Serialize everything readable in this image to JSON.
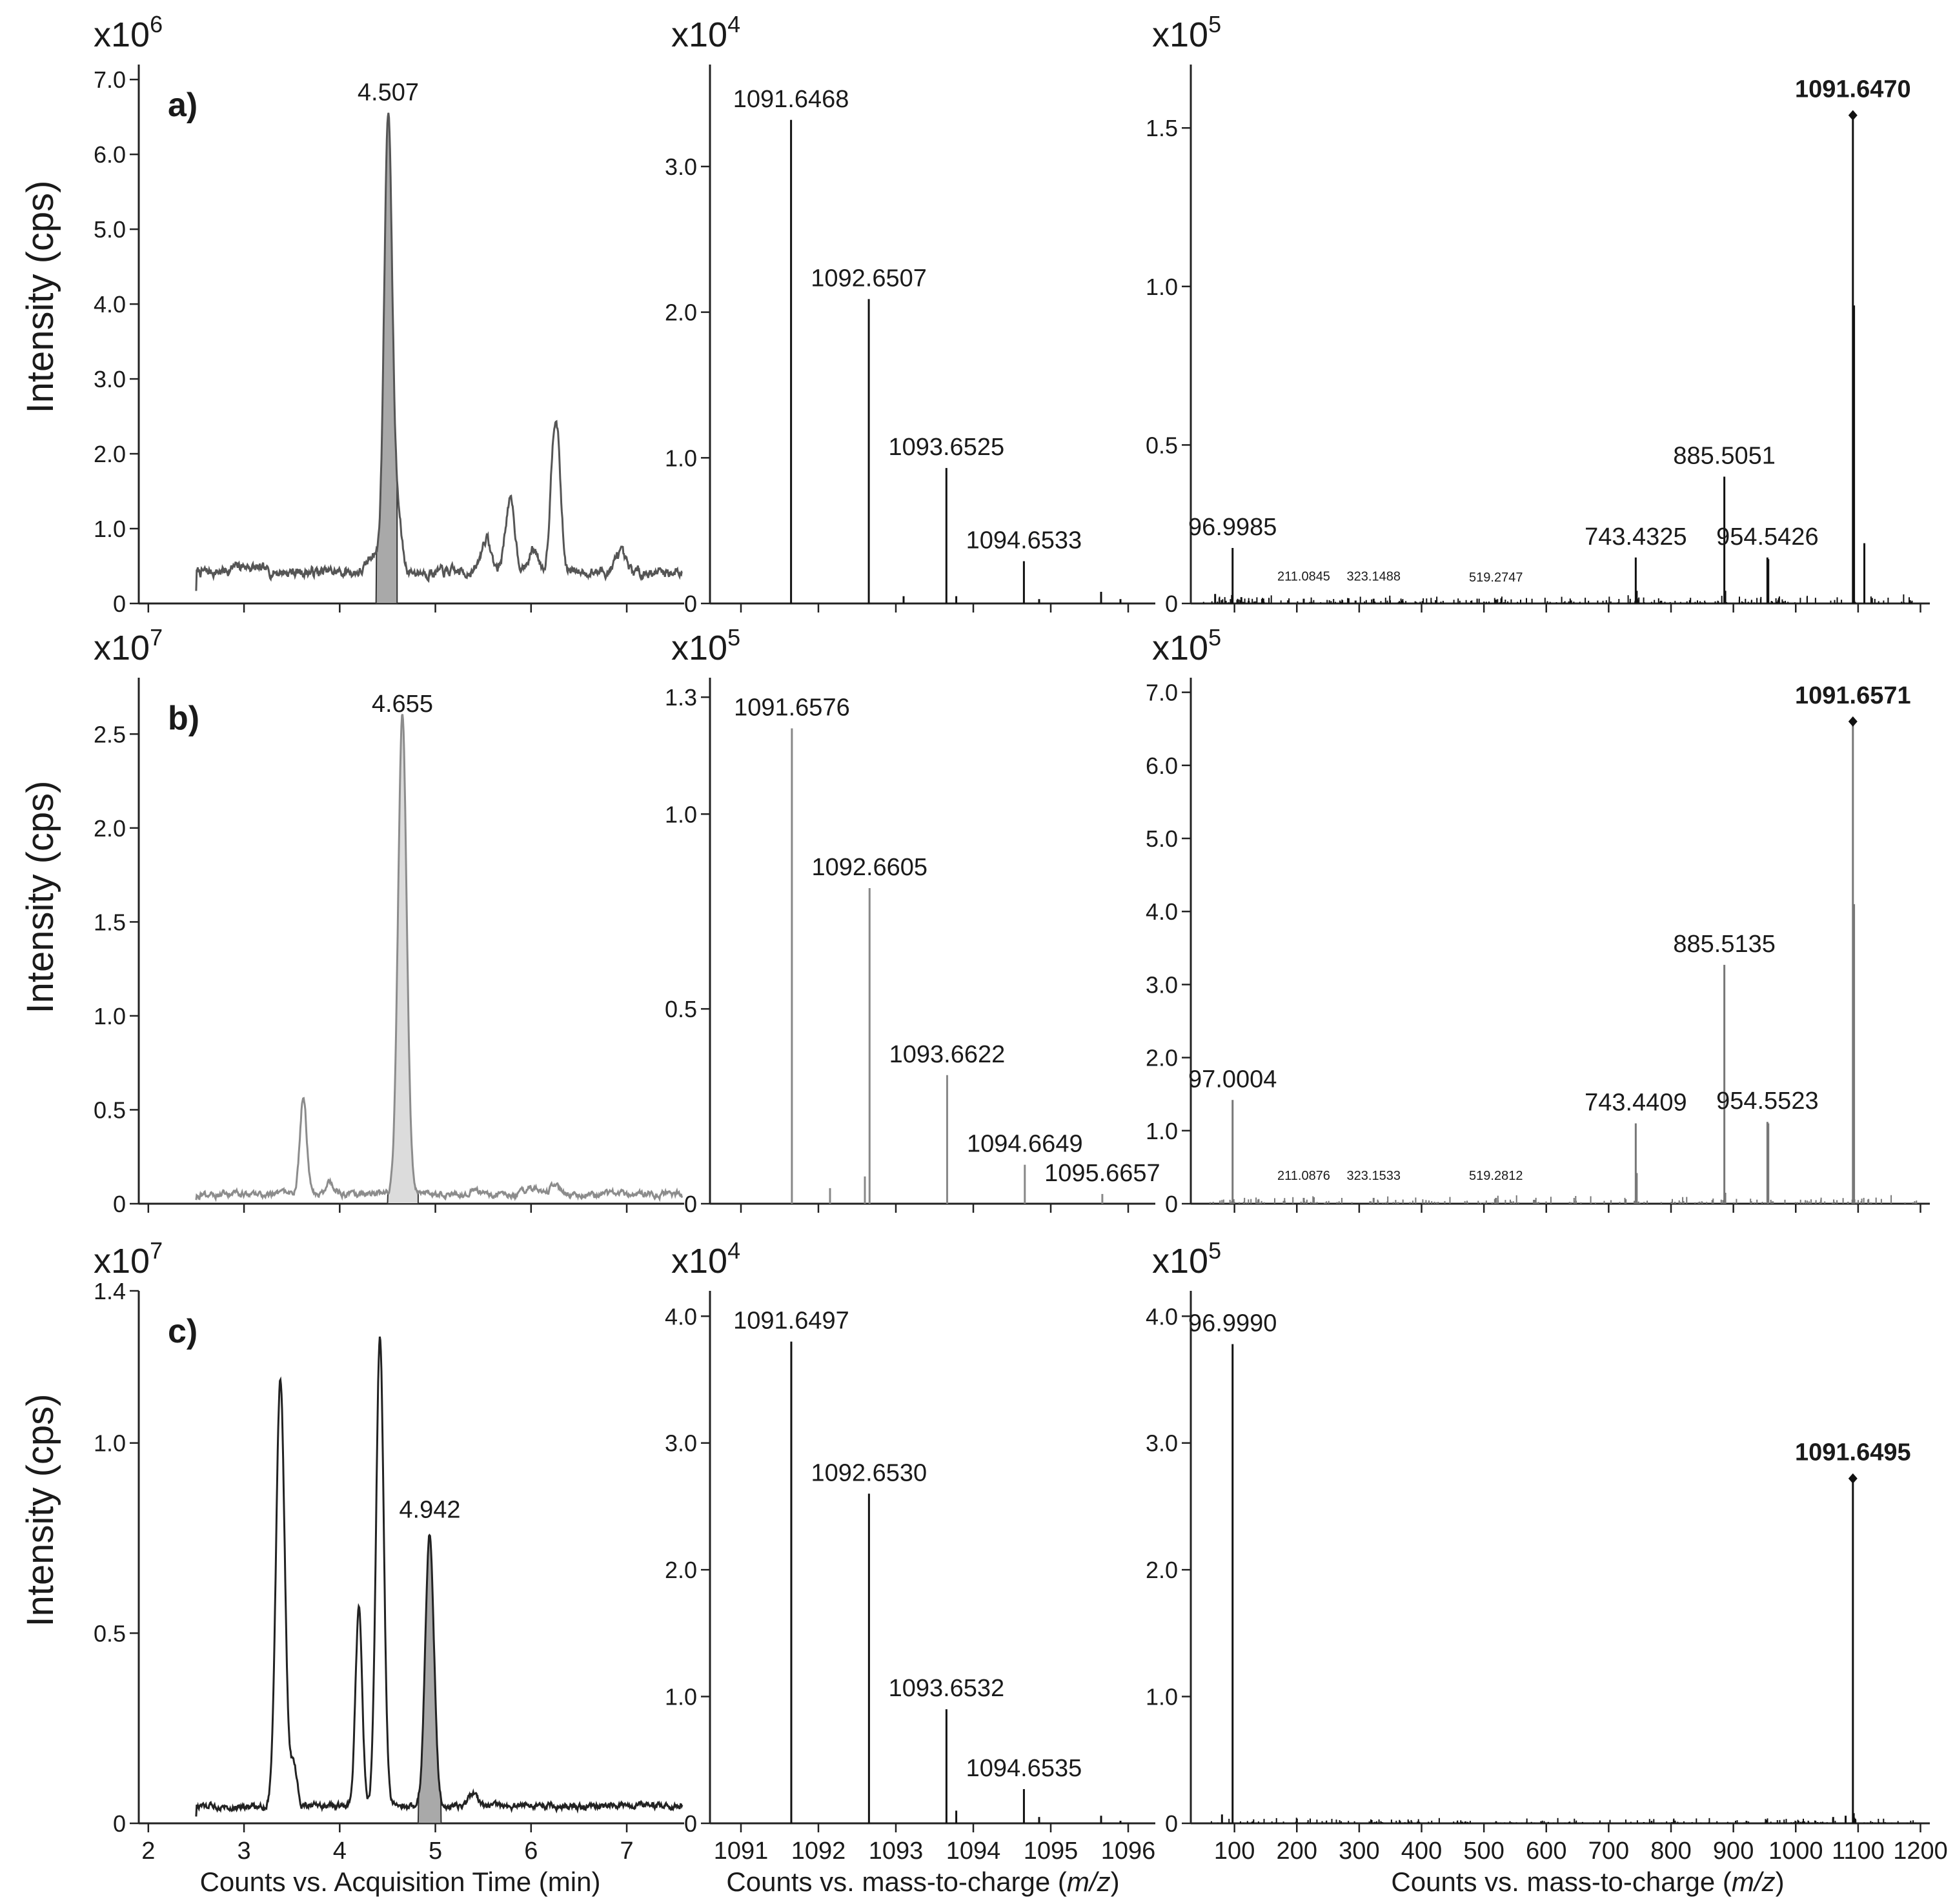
{
  "figure": {
    "y_axis_label": "Intensity (cps)",
    "x_axis_labels": {
      "chromatogram": "Counts vs. Acquisition Time (min)",
      "ms_prefix": "Counts vs. mass-to-charge (",
      "ms_italic": "m/z",
      "ms_suffix": ")"
    }
  },
  "chart_data": [
    {
      "id": "a-chrom",
      "row_label": "a)",
      "type": "line",
      "multiplier_base": "x10",
      "multiplier_exp": "6",
      "xlim": [
        1.9,
        7.6
      ],
      "ylim": [
        0,
        7.2
      ],
      "y_ticks": [
        0,
        1.0,
        2.0,
        3.0,
        4.0,
        5.0,
        6.0,
        7.0
      ],
      "y_tick_labels": [
        "0",
        "1.0",
        "2.0",
        "3.0",
        "4.0",
        "5.0",
        "6.0",
        "7.0"
      ],
      "x_ticks": [
        2,
        3,
        4,
        5,
        6,
        7
      ],
      "x_tick_labels": [],
      "color": "#555555",
      "trace_base": 0.42,
      "trace_noise": 0.05,
      "peaks": [
        [
          3.0,
          0.08,
          0.12
        ],
        [
          4.35,
          0.25,
          0.05
        ],
        [
          4.507,
          6.15,
          0.042
        ],
        [
          4.61,
          0.7,
          0.04
        ],
        [
          5.53,
          0.45,
          0.05
        ],
        [
          5.78,
          0.95,
          0.05
        ],
        [
          6.03,
          0.3,
          0.05
        ],
        [
          6.24,
          1.65,
          0.04
        ],
        [
          6.29,
          0.9,
          0.035
        ],
        [
          6.93,
          0.25,
          0.05
        ]
      ],
      "shaded": [
        4.38,
        4.6
      ],
      "shade_color": "#a9a9a9",
      "peak_label": "4.507",
      "peak_label_x": 4.507,
      "peak_label_y": 6.6
    },
    {
      "id": "a-ms1",
      "type": "stick",
      "multiplier_base": "x10",
      "multiplier_exp": "4",
      "xlim": [
        1090.6,
        1096.35
      ],
      "ylim": [
        0,
        3.7
      ],
      "y_ticks": [
        0,
        1.0,
        2.0,
        3.0
      ],
      "y_tick_labels": [
        "0",
        "1.0",
        "2.0",
        "3.0"
      ],
      "x_ticks": [
        1091,
        1092,
        1093,
        1094,
        1095,
        1096
      ],
      "x_tick_labels": [],
      "color": "#111111",
      "sticks": [
        [
          1091.6468,
          3.32
        ],
        [
          1092.6507,
          2.09
        ],
        [
          1093.1,
          0.05
        ],
        [
          1093.6525,
          0.93
        ],
        [
          1093.78,
          0.05
        ],
        [
          1094.6533,
          0.29
        ],
        [
          1094.85,
          0.03
        ],
        [
          1095.65,
          0.08
        ],
        [
          1095.9,
          0.03
        ]
      ],
      "labels": [
        {
          "text": "1091.6468",
          "x": 1091.6468,
          "y": 3.32
        },
        {
          "text": "1092.6507",
          "x": 1092.6507,
          "y": 2.09
        },
        {
          "text": "1093.6525",
          "x": 1093.6525,
          "y": 0.93
        },
        {
          "text": "1094.6533",
          "x": 1094.6533,
          "y": 0.29
        }
      ]
    },
    {
      "id": "a-ms2",
      "type": "stick",
      "multiplier_base": "x10",
      "multiplier_exp": "5",
      "xlim": [
        30,
        1215
      ],
      "ylim": [
        0,
        1.7
      ],
      "y_ticks": [
        0,
        0.5,
        1.0,
        1.5
      ],
      "y_tick_labels": [
        "0",
        "0.5",
        "1.0",
        "1.5"
      ],
      "x_ticks": [
        100,
        200,
        300,
        400,
        500,
        600,
        700,
        800,
        900,
        1000,
        1100,
        1200
      ],
      "x_tick_labels": [],
      "color": "#111111",
      "noise_level": 0.012,
      "noise_seed": 11,
      "sticks": [
        [
          69,
          0.03
        ],
        [
          96.9985,
          0.175
        ],
        [
          111,
          0.02
        ],
        [
          211.0845,
          0.015
        ],
        [
          323.1488,
          0.015
        ],
        [
          519.2747,
          0.012
        ],
        [
          743.4325,
          0.145
        ],
        [
          745,
          0.04
        ],
        [
          885.5051,
          0.4
        ],
        [
          887,
          0.04
        ],
        [
          954.5426,
          0.145
        ],
        [
          956,
          0.14
        ],
        [
          1091.647,
          1.54
        ],
        [
          1093.5,
          0.94
        ],
        [
          1110,
          0.19
        ]
      ],
      "labels": [
        {
          "text": "96.9985",
          "x": 96.9985,
          "y": 0.175
        },
        {
          "text": "211.0845",
          "x": 211.0845,
          "y": 0.015,
          "small": true
        },
        {
          "text": "323.1488",
          "x": 323.1488,
          "y": 0.015,
          "small": true
        },
        {
          "text": "519.2747",
          "x": 519.2747,
          "y": 0.012,
          "small": true
        },
        {
          "text": "743.4325",
          "x": 743.4325,
          "y": 0.145
        },
        {
          "text": "885.5051",
          "x": 885.5051,
          "y": 0.4
        },
        {
          "text": "954.5426",
          "x": 954.5426,
          "y": 0.145
        },
        {
          "text": "1091.6470",
          "x": 1091.647,
          "y": 1.54,
          "bold": true,
          "diamond": true
        }
      ]
    },
    {
      "id": "b-chrom",
      "row_label": "b)",
      "type": "line",
      "multiplier_base": "x10",
      "multiplier_exp": "7",
      "xlim": [
        1.9,
        7.6
      ],
      "ylim": [
        0,
        2.8
      ],
      "y_ticks": [
        0,
        0.5,
        1.0,
        1.5,
        2.0,
        2.5
      ],
      "y_tick_labels": [
        "0",
        "0.5",
        "1.0",
        "1.5",
        "2.0",
        "2.5"
      ],
      "x_ticks": [
        2,
        3,
        4,
        5,
        6,
        7
      ],
      "x_tick_labels": [],
      "color": "#8c8c8c",
      "trace_base": 0.05,
      "trace_noise": 0.012,
      "peaks": [
        [
          3.62,
          0.52,
          0.035
        ],
        [
          3.9,
          0.06,
          0.04
        ],
        [
          4.655,
          2.55,
          0.045
        ],
        [
          5.4,
          0.02,
          0.05
        ],
        [
          6.0,
          0.04,
          0.05
        ],
        [
          6.25,
          0.05,
          0.04
        ]
      ],
      "shaded": [
        4.5,
        4.82
      ],
      "shade_color": "#dcdcdc",
      "peak_label": "4.655",
      "peak_label_x": 4.655,
      "peak_label_y": 2.57
    },
    {
      "id": "b-ms1",
      "type": "stick",
      "multiplier_base": "x10",
      "multiplier_exp": "5",
      "xlim": [
        1090.6,
        1096.35
      ],
      "ylim": [
        0,
        1.35
      ],
      "y_ticks": [
        0,
        0.5,
        1.0,
        1.3
      ],
      "y_tick_labels": [
        "0",
        "0.5",
        "1.0",
        "1.3"
      ],
      "x_ticks": [
        1091,
        1092,
        1093,
        1094,
        1095,
        1096
      ],
      "x_tick_labels": [],
      "color": "#888888",
      "sticks": [
        [
          1091.6576,
          1.22
        ],
        [
          1092.15,
          0.04
        ],
        [
          1092.6,
          0.07
        ],
        [
          1092.6605,
          0.81
        ],
        [
          1093.6622,
          0.33
        ],
        [
          1094.6649,
          0.1
        ],
        [
          1095.6657,
          0.025
        ]
      ],
      "labels": [
        {
          "text": "1091.6576",
          "x": 1091.6576,
          "y": 1.22
        },
        {
          "text": "1092.6605",
          "x": 1092.6605,
          "y": 0.81
        },
        {
          "text": "1093.6622",
          "x": 1093.6622,
          "y": 0.33
        },
        {
          "text": "1094.6649",
          "x": 1094.6649,
          "y": 0.1
        },
        {
          "text": "1095.6657",
          "x": 1095.6657,
          "y": 0.025
        }
      ]
    },
    {
      "id": "b-ms2",
      "type": "stick",
      "multiplier_base": "x10",
      "multiplier_exp": "5",
      "xlim": [
        30,
        1215
      ],
      "ylim": [
        0,
        7.2
      ],
      "y_ticks": [
        0,
        1.0,
        2.0,
        3.0,
        4.0,
        5.0,
        6.0,
        7.0
      ],
      "y_tick_labels": [
        "0",
        "1.0",
        "2.0",
        "3.0",
        "4.0",
        "5.0",
        "6.0",
        "7.0"
      ],
      "x_ticks": [
        100,
        200,
        300,
        400,
        500,
        600,
        700,
        800,
        900,
        1000,
        1100,
        1200
      ],
      "x_tick_labels": [],
      "color": "#777777",
      "noise_level": 0.05,
      "noise_seed": 23,
      "sticks": [
        [
          97.0004,
          1.42
        ],
        [
          211.0876,
          0.08
        ],
        [
          323.1533,
          0.08
        ],
        [
          519.2812,
          0.08
        ],
        [
          743.4409,
          1.1
        ],
        [
          745,
          0.42
        ],
        [
          885.5135,
          3.27
        ],
        [
          887,
          0.15
        ],
        [
          954.5523,
          1.12
        ],
        [
          956,
          1.1
        ],
        [
          1091.6571,
          6.6
        ],
        [
          1093.5,
          4.1
        ]
      ],
      "labels": [
        {
          "text": "97.0004",
          "x": 97.0004,
          "y": 1.42
        },
        {
          "text": "211.0876",
          "x": 211.0876,
          "y": 0.08,
          "small": true
        },
        {
          "text": "323.1533",
          "x": 323.1533,
          "y": 0.08,
          "small": true
        },
        {
          "text": "519.2812",
          "x": 519.2812,
          "y": 0.08,
          "small": true
        },
        {
          "text": "743.4409",
          "x": 743.4409,
          "y": 1.1
        },
        {
          "text": "885.5135",
          "x": 885.5135,
          "y": 3.27
        },
        {
          "text": "954.5523",
          "x": 954.5523,
          "y": 1.12
        },
        {
          "text": "1091.6571",
          "x": 1091.6571,
          "y": 6.6,
          "bold": true,
          "diamond": true
        }
      ]
    },
    {
      "id": "c-chrom",
      "row_label": "c)",
      "type": "line",
      "multiplier_base": "x10",
      "multiplier_exp": "7",
      "xlim": [
        1.9,
        7.6
      ],
      "ylim": [
        0,
        1.4
      ],
      "y_ticks": [
        0,
        0.5,
        1.0,
        1.4
      ],
      "y_tick_labels": [
        "0",
        "0.5",
        "1.0",
        "1.4"
      ],
      "x_ticks": [
        2,
        3,
        4,
        5,
        6,
        7
      ],
      "x_tick_labels": [
        "2",
        "3",
        "4",
        "5",
        "6",
        "7"
      ],
      "color": "#222222",
      "trace_base": 0.045,
      "trace_noise": 0.006,
      "peaks": [
        [
          3.38,
          1.12,
          0.045
        ],
        [
          3.52,
          0.11,
          0.035
        ],
        [
          4.2,
          0.52,
          0.035
        ],
        [
          4.42,
          1.23,
          0.04
        ],
        [
          4.94,
          0.715,
          0.045
        ],
        [
          5.4,
          0.03,
          0.05
        ]
      ],
      "shaded": [
        4.82,
        5.06
      ],
      "shade_color": "#a9a9a9",
      "peak_label": "4.942",
      "peak_label_x": 4.942,
      "peak_label_y": 0.78
    },
    {
      "id": "c-ms1",
      "type": "stick",
      "multiplier_base": "x10",
      "multiplier_exp": "4",
      "xlim": [
        1090.6,
        1096.35
      ],
      "ylim": [
        0,
        4.2
      ],
      "y_ticks": [
        0,
        1.0,
        2.0,
        3.0,
        4.0
      ],
      "y_tick_labels": [
        "0",
        "1.0",
        "2.0",
        "3.0",
        "4.0"
      ],
      "x_ticks": [
        1091,
        1092,
        1093,
        1094,
        1095,
        1096
      ],
      "x_tick_labels": [
        "1091",
        "1092",
        "1093",
        "1094",
        "1095",
        "1096"
      ],
      "color": "#111111",
      "sticks": [
        [
          1091.6497,
          3.8
        ],
        [
          1092.653,
          2.6
        ],
        [
          1093.6532,
          0.9
        ],
        [
          1093.78,
          0.1
        ],
        [
          1094.6535,
          0.27
        ],
        [
          1094.85,
          0.05
        ],
        [
          1095.65,
          0.06
        ],
        [
          1095.9,
          0.02
        ]
      ],
      "labels": [
        {
          "text": "1091.6497",
          "x": 1091.6497,
          "y": 3.8
        },
        {
          "text": "1092.6530",
          "x": 1092.653,
          "y": 2.6
        },
        {
          "text": "1093.6532",
          "x": 1093.6532,
          "y": 0.9
        },
        {
          "text": "1094.6535",
          "x": 1094.6535,
          "y": 0.27
        }
      ]
    },
    {
      "id": "c-ms2",
      "type": "stick",
      "multiplier_base": "x10",
      "multiplier_exp": "5",
      "xlim": [
        30,
        1215
      ],
      "ylim": [
        0,
        4.2
      ],
      "y_ticks": [
        0,
        1.0,
        2.0,
        3.0,
        4.0
      ],
      "y_tick_labels": [
        "0",
        "1.0",
        "2.0",
        "3.0",
        "4.0"
      ],
      "x_ticks": [
        100,
        200,
        300,
        400,
        500,
        600,
        700,
        800,
        900,
        1000,
        1100,
        1200
      ],
      "x_tick_labels": [
        "100",
        "200",
        "300",
        "400",
        "500",
        "600",
        "700",
        "800",
        "900",
        "1000",
        "1100",
        "1200"
      ],
      "color": "#111111",
      "noise_level": 0.02,
      "noise_seed": 37,
      "sticks": [
        [
          80,
          0.07
        ],
        [
          96.999,
          3.78
        ],
        [
          1060,
          0.05
        ],
        [
          1080,
          0.06
        ],
        [
          1091.6495,
          2.72
        ],
        [
          1093,
          0.08
        ]
      ],
      "labels": [
        {
          "text": "96.9990",
          "x": 96.999,
          "y": 3.78
        },
        {
          "text": "1091.6495",
          "x": 1091.6495,
          "y": 2.72,
          "bold": true,
          "diamond": true
        }
      ]
    }
  ]
}
